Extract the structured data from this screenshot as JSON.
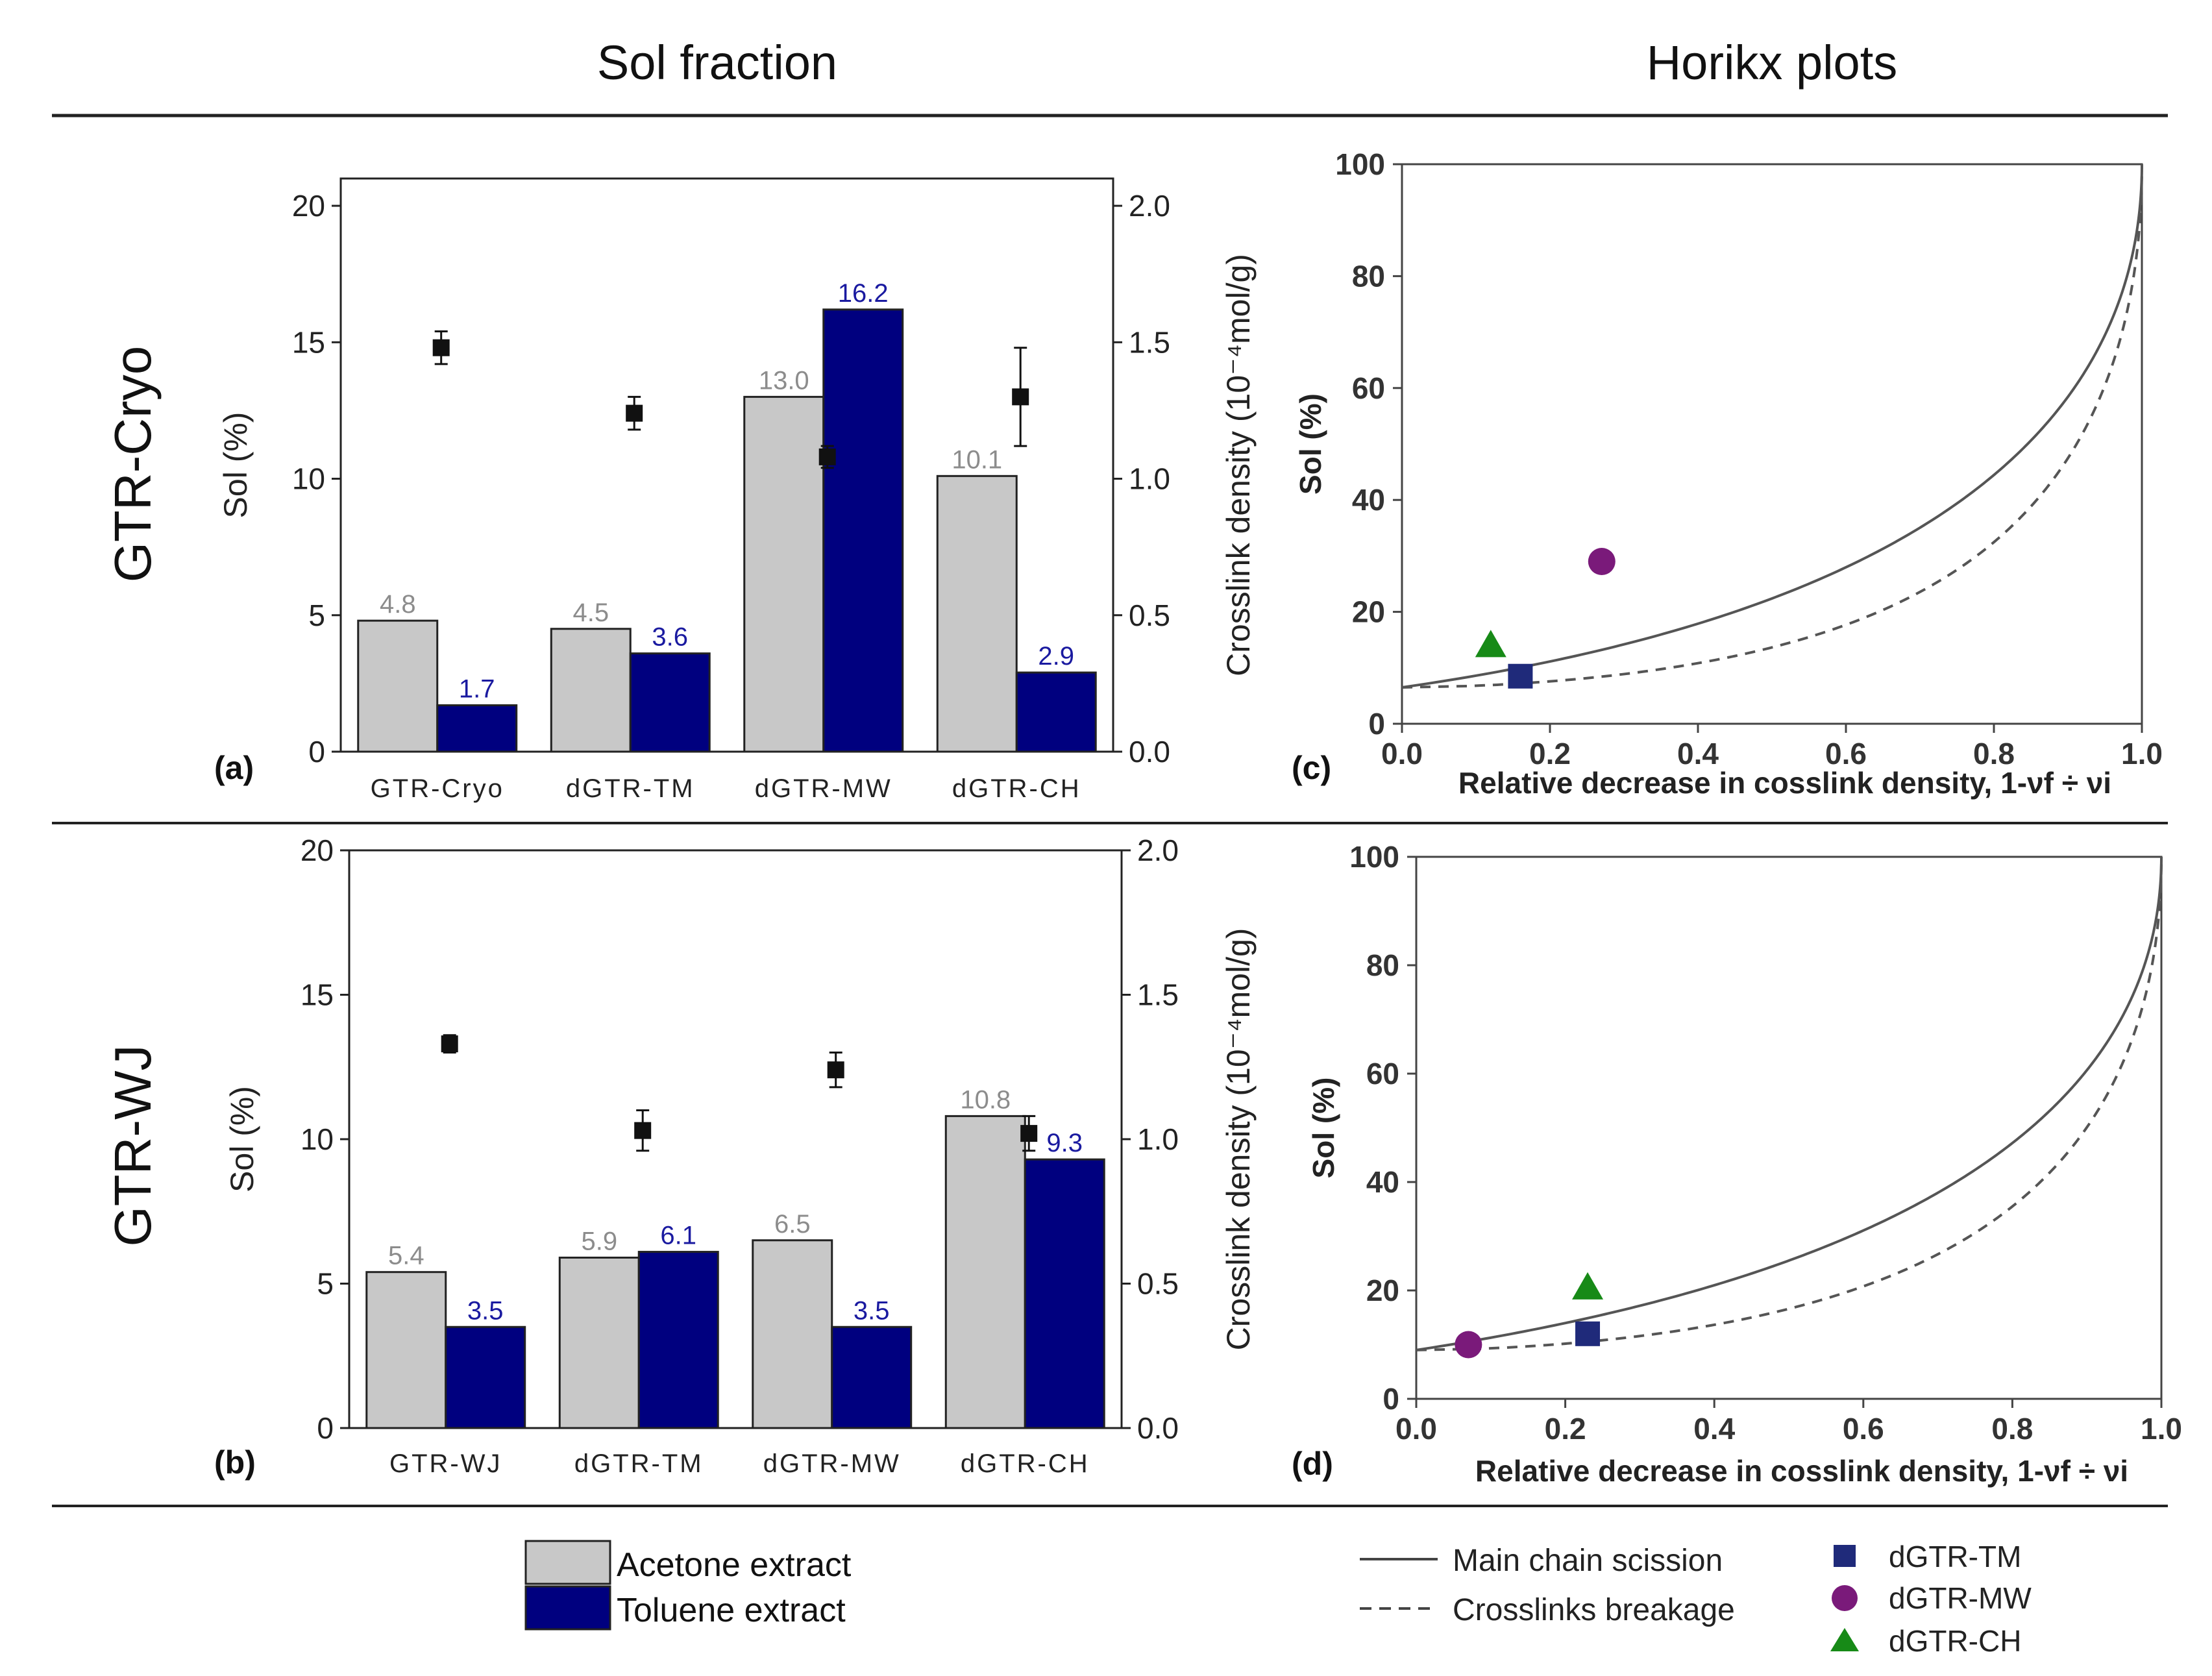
{
  "headers": {
    "left": "Sol fraction",
    "right": "Horikx plots"
  },
  "row_labels": [
    "GTR-Cryo",
    "GTR-WJ"
  ],
  "colors": {
    "acetone": "#c8c8c8",
    "toluene": "#00007f",
    "acetone_label": "#8c8c8c",
    "toluene_label": "#1a1aa0",
    "tm": "#1f2a7a",
    "mw": "#7a1a7a",
    "ch": "#178a17",
    "curve": "#555555"
  },
  "legend_left": {
    "acetone": "Acetone extract",
    "toluene": "Toluene extract"
  },
  "legend_right": {
    "main_chain": "Main chain scission",
    "crosslinks": "Crosslinks breakage",
    "tm": "dGTR-TM",
    "mw": "dGTR-MW",
    "ch": "dGTR-CH"
  },
  "chart_data": [
    {
      "id": "a",
      "panel_label": "(a)",
      "type": "bar",
      "categories": [
        "GTR-Cryo",
        "dGTR-TM",
        "dGTR-MW",
        "dGTR-CH"
      ],
      "series": [
        {
          "name": "Acetone extract",
          "values": [
            4.8,
            4.5,
            13.0,
            10.1
          ]
        },
        {
          "name": "Toluene extract",
          "values": [
            1.7,
            3.6,
            16.2,
            2.9
          ]
        }
      ],
      "value_labels": {
        "acetone": [
          "4.8",
          "4.5",
          "13.0",
          "10.1"
        ],
        "toluene": [
          "1.7",
          "3.6",
          "16.2",
          "2.9"
        ]
      },
      "crosslink_density": [
        1.48,
        1.24,
        1.08,
        1.3
      ],
      "crosslink_error": [
        0.06,
        0.06,
        0.04,
        0.18
      ],
      "ylabel": "Sol (%)",
      "ylim": [
        0,
        21
      ],
      "yticks": [
        0,
        5,
        10,
        15,
        20
      ],
      "ytick_labels": [
        "0",
        "5",
        "10",
        "15",
        "20"
      ],
      "y2label": "Crosslink density (10⁻⁴mol/g)",
      "y2lim": [
        0,
        2.1
      ],
      "y2ticks": [
        0,
        0.5,
        1.0,
        1.5,
        2.0
      ],
      "y2tick_labels": [
        "0.0",
        "0.5",
        "1.0",
        "1.5",
        "2.0"
      ]
    },
    {
      "id": "b",
      "panel_label": "(b)",
      "type": "bar",
      "categories": [
        "GTR-WJ",
        "dGTR-TM",
        "dGTR-MW",
        "dGTR-CH"
      ],
      "series": [
        {
          "name": "Acetone extract",
          "values": [
            5.4,
            5.9,
            6.5,
            10.8
          ]
        },
        {
          "name": "Toluene extract",
          "values": [
            3.5,
            6.1,
            3.5,
            9.3
          ]
        }
      ],
      "value_labels": {
        "acetone": [
          "5.4",
          "5.9",
          "6.5",
          "10.8"
        ],
        "toluene": [
          "3.5",
          "6.1",
          "3.5",
          "9.3"
        ]
      },
      "crosslink_density": [
        1.33,
        1.03,
        1.24,
        1.02
      ],
      "crosslink_error": [
        0.03,
        0.07,
        0.06,
        0.06
      ],
      "ylabel": "Sol (%)",
      "ylim": [
        0,
        20
      ],
      "yticks": [
        0,
        5,
        10,
        15,
        20
      ],
      "ytick_labels": [
        "0",
        "5",
        "10",
        "15",
        "20"
      ],
      "y2label": "Crosslink density (10⁻⁴mol/g)",
      "y2lim": [
        0,
        2.0
      ],
      "y2ticks": [
        0,
        0.5,
        1.0,
        1.5,
        2.0
      ],
      "y2tick_labels": [
        "0.0",
        "0.5",
        "1.0",
        "1.5",
        "2.0"
      ]
    },
    {
      "id": "c",
      "panel_label": "(c)",
      "type": "scatter",
      "xlabel": "Relative decrease in cosslink density, 1-νf ÷ νi",
      "ylabel": "Sol (%)",
      "xlim": [
        0,
        1
      ],
      "ylim": [
        0,
        100
      ],
      "xticks": [
        0,
        0.2,
        0.4,
        0.6,
        0.8,
        1.0
      ],
      "xtick_labels": [
        "0.0",
        "0.2",
        "0.4",
        "0.6",
        "0.8",
        "1.0"
      ],
      "yticks": [
        0,
        20,
        40,
        60,
        80,
        100
      ],
      "ytick_labels": [
        "0",
        "20",
        "40",
        "60",
        "80",
        "100"
      ],
      "s0": 0.065,
      "points": [
        {
          "name": "dGTR-TM",
          "x": 0.16,
          "y": 8.5,
          "marker": "square"
        },
        {
          "name": "dGTR-MW",
          "x": 0.27,
          "y": 29.0,
          "marker": "circle"
        },
        {
          "name": "dGTR-CH",
          "x": 0.12,
          "y": 14.0,
          "marker": "triangle"
        }
      ]
    },
    {
      "id": "d",
      "panel_label": "(d)",
      "type": "scatter",
      "xlabel": "Relative decrease in cosslink density, 1-νf ÷ νi",
      "ylabel": "Sol (%)",
      "xlim": [
        0,
        1
      ],
      "ylim": [
        0,
        100
      ],
      "xticks": [
        0,
        0.2,
        0.4,
        0.6,
        0.8,
        1.0
      ],
      "xtick_labels": [
        "0.0",
        "0.2",
        "0.4",
        "0.6",
        "0.8",
        "1.0"
      ],
      "yticks": [
        0,
        20,
        40,
        60,
        80,
        100
      ],
      "ytick_labels": [
        "0",
        "20",
        "40",
        "60",
        "80",
        "100"
      ],
      "s0": 0.09,
      "points": [
        {
          "name": "dGTR-TM",
          "x": 0.23,
          "y": 12.0,
          "marker": "square"
        },
        {
          "name": "dGTR-MW",
          "x": 0.07,
          "y": 10.0,
          "marker": "circle"
        },
        {
          "name": "dGTR-CH",
          "x": 0.23,
          "y": 20.5,
          "marker": "triangle"
        }
      ]
    }
  ]
}
